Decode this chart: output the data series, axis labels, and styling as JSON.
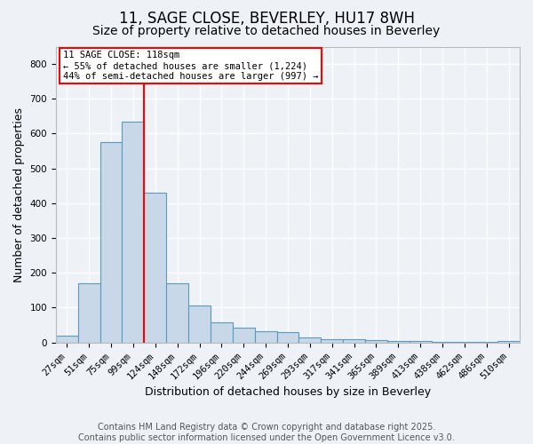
{
  "title1": "11, SAGE CLOSE, BEVERLEY, HU17 8WH",
  "title2": "Size of property relative to detached houses in Beverley",
  "xlabel": "Distribution of detached houses by size in Beverley",
  "ylabel": "Number of detached properties",
  "categories": [
    "27sqm",
    "51sqm",
    "75sqm",
    "99sqm",
    "124sqm",
    "148sqm",
    "172sqm",
    "196sqm",
    "220sqm",
    "244sqm",
    "269sqm",
    "293sqm",
    "317sqm",
    "341sqm",
    "365sqm",
    "389sqm",
    "413sqm",
    "438sqm",
    "462sqm",
    "486sqm",
    "510sqm"
  ],
  "values": [
    20,
    170,
    575,
    635,
    430,
    170,
    105,
    57,
    42,
    33,
    30,
    15,
    10,
    8,
    6,
    4,
    3,
    2,
    1,
    1,
    5
  ],
  "bar_color": "#c8d8e8",
  "bar_edgecolor": "#5a9abe",
  "bar_linewidth": 0.8,
  "vline_index": 4,
  "vline_color": "red",
  "vline_linewidth": 1.5,
  "annotation_line1": "11 SAGE CLOSE: 118sqm",
  "annotation_line2": "← 55% of detached houses are smaller (1,224)",
  "annotation_line3": "44% of semi-detached houses are larger (997) →",
  "annotation_box_facecolor": "white",
  "annotation_box_edgecolor": "red",
  "ylim": [
    0,
    850
  ],
  "yticks": [
    0,
    100,
    200,
    300,
    400,
    500,
    600,
    700,
    800
  ],
  "background_color": "#eef2f7",
  "plot_bg_color": "#eef2f7",
  "grid_color": "white",
  "footnote_line1": "Contains HM Land Registry data © Crown copyright and database right 2025.",
  "footnote_line2": "Contains public sector information licensed under the Open Government Licence v3.0.",
  "title1_fontsize": 12,
  "title2_fontsize": 10,
  "xlabel_fontsize": 9,
  "ylabel_fontsize": 9,
  "tick_fontsize": 7.5,
  "annotation_fontsize": 7.5,
  "footnote_fontsize": 7
}
